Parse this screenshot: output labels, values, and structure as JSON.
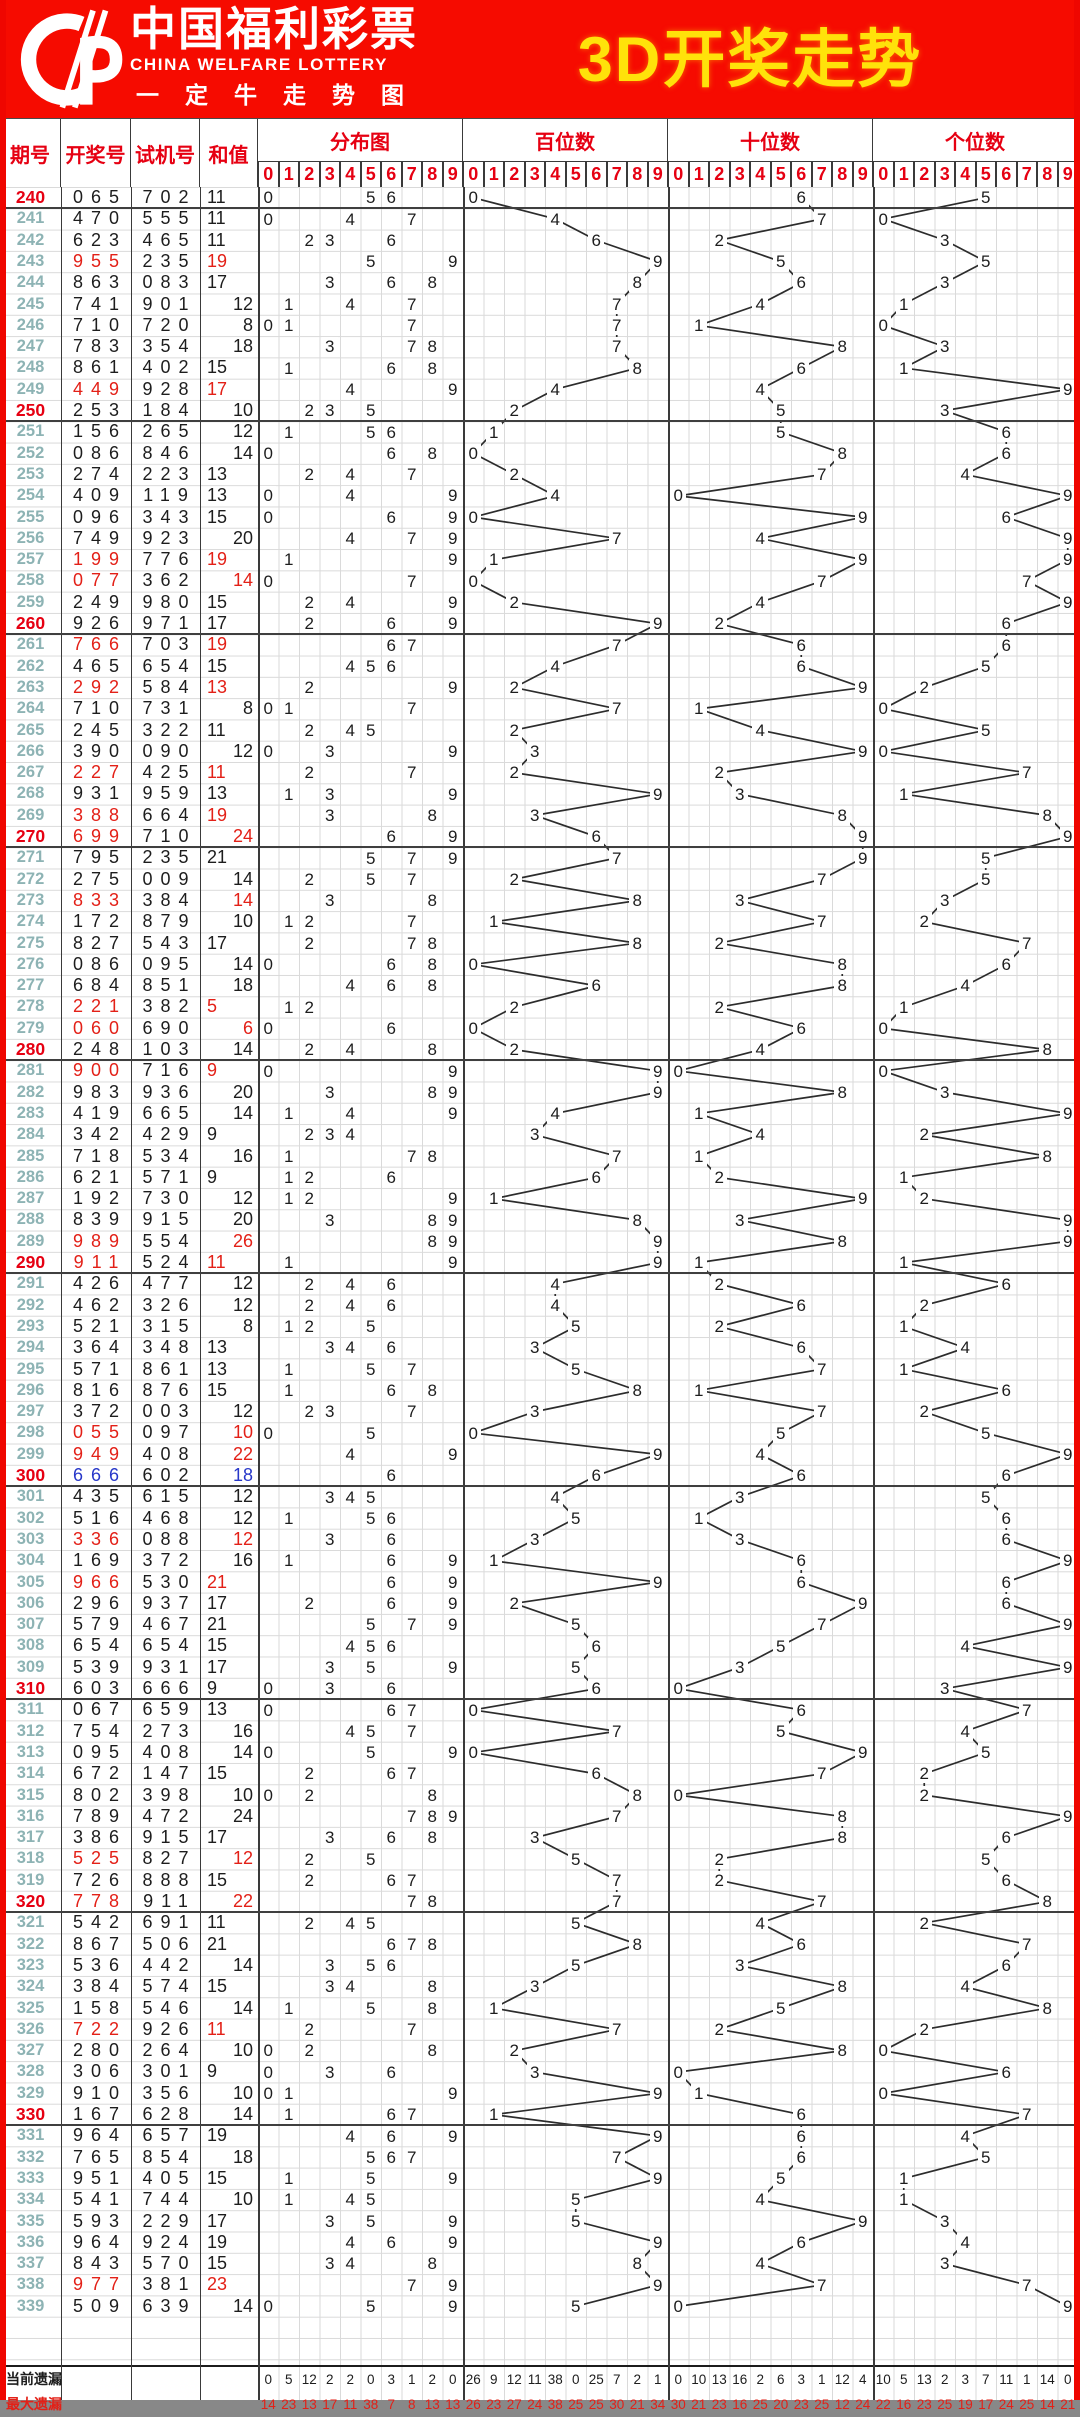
{
  "banner": {
    "brand_cn": "中国福利彩票",
    "brand_en": "CHINA WELFARE LOTTERY",
    "brand_sub": "一定牛走势图",
    "title": "3D开奖走势"
  },
  "headers": {
    "period": "期号",
    "draw": "开奖号",
    "test": "试机号",
    "sum": "和值",
    "sections": [
      "分布图",
      "百位数",
      "十位数",
      "个位数"
    ],
    "digits": [
      "0",
      "1",
      "2",
      "3",
      "4",
      "5",
      "6",
      "7",
      "8",
      "9"
    ]
  },
  "colors": {
    "banner_red": "#f60b00",
    "title_yellow": "#ffe20a",
    "header_red": "#e60012",
    "pair_red": "#e32017",
    "triple_blue": "#2737c9",
    "period_teal": "#8db3b4",
    "grid_light": "#dadada",
    "line_dark": "#2c2c2c"
  },
  "rows": [
    {
      "period": "240",
      "draw": "065",
      "test": "702",
      "sum": "11"
    },
    {
      "period": "241",
      "draw": "470",
      "test": "555",
      "sum": "11"
    },
    {
      "period": "242",
      "draw": "623",
      "test": "465",
      "sum": "11"
    },
    {
      "period": "243",
      "draw": "955",
      "test": "235",
      "sum": "19"
    },
    {
      "period": "244",
      "draw": "863",
      "test": "083",
      "sum": "17"
    },
    {
      "period": "245",
      "draw": "741",
      "test": "901",
      "sum": "12"
    },
    {
      "period": "246",
      "draw": "710",
      "test": "720",
      "sum": "8"
    },
    {
      "period": "247",
      "draw": "783",
      "test": "354",
      "sum": "18"
    },
    {
      "period": "248",
      "draw": "861",
      "test": "402",
      "sum": "15"
    },
    {
      "period": "249",
      "draw": "449",
      "test": "928",
      "sum": "17"
    },
    {
      "period": "250",
      "draw": "253",
      "test": "184",
      "sum": "10"
    },
    {
      "period": "251",
      "draw": "156",
      "test": "265",
      "sum": "12"
    },
    {
      "period": "252",
      "draw": "086",
      "test": "846",
      "sum": "14"
    },
    {
      "period": "253",
      "draw": "274",
      "test": "223",
      "sum": "13"
    },
    {
      "period": "254",
      "draw": "409",
      "test": "119",
      "sum": "13"
    },
    {
      "period": "255",
      "draw": "096",
      "test": "343",
      "sum": "15"
    },
    {
      "period": "256",
      "draw": "749",
      "test": "923",
      "sum": "20"
    },
    {
      "period": "257",
      "draw": "199",
      "test": "776",
      "sum": "19"
    },
    {
      "period": "258",
      "draw": "077",
      "test": "362",
      "sum": "14"
    },
    {
      "period": "259",
      "draw": "249",
      "test": "980",
      "sum": "15"
    },
    {
      "period": "260",
      "draw": "926",
      "test": "971",
      "sum": "17"
    },
    {
      "period": "261",
      "draw": "766",
      "test": "703",
      "sum": "19"
    },
    {
      "period": "262",
      "draw": "465",
      "test": "654",
      "sum": "15"
    },
    {
      "period": "263",
      "draw": "292",
      "test": "584",
      "sum": "13"
    },
    {
      "period": "264",
      "draw": "710",
      "test": "731",
      "sum": "8"
    },
    {
      "period": "265",
      "draw": "245",
      "test": "322",
      "sum": "11"
    },
    {
      "period": "266",
      "draw": "390",
      "test": "090",
      "sum": "12"
    },
    {
      "period": "267",
      "draw": "227",
      "test": "425",
      "sum": "11"
    },
    {
      "period": "268",
      "draw": "931",
      "test": "959",
      "sum": "13"
    },
    {
      "period": "269",
      "draw": "388",
      "test": "664",
      "sum": "19"
    },
    {
      "period": "270",
      "draw": "699",
      "test": "710",
      "sum": "24"
    },
    {
      "period": "271",
      "draw": "795",
      "test": "235",
      "sum": "21"
    },
    {
      "period": "272",
      "draw": "275",
      "test": "009",
      "sum": "14"
    },
    {
      "period": "273",
      "draw": "833",
      "test": "384",
      "sum": "14"
    },
    {
      "period": "274",
      "draw": "172",
      "test": "879",
      "sum": "10"
    },
    {
      "period": "275",
      "draw": "827",
      "test": "543",
      "sum": "17"
    },
    {
      "period": "276",
      "draw": "086",
      "test": "095",
      "sum": "14"
    },
    {
      "period": "277",
      "draw": "684",
      "test": "851",
      "sum": "18"
    },
    {
      "period": "278",
      "draw": "221",
      "test": "382",
      "sum": "5"
    },
    {
      "period": "279",
      "draw": "060",
      "test": "690",
      "sum": "6"
    },
    {
      "period": "280",
      "draw": "248",
      "test": "103",
      "sum": "14"
    },
    {
      "period": "281",
      "draw": "900",
      "test": "716",
      "sum": "9"
    },
    {
      "period": "282",
      "draw": "983",
      "test": "936",
      "sum": "20"
    },
    {
      "period": "283",
      "draw": "419",
      "test": "665",
      "sum": "14"
    },
    {
      "period": "284",
      "draw": "342",
      "test": "429",
      "sum": "9"
    },
    {
      "period": "285",
      "draw": "718",
      "test": "534",
      "sum": "16"
    },
    {
      "period": "286",
      "draw": "621",
      "test": "571",
      "sum": "9"
    },
    {
      "period": "287",
      "draw": "192",
      "test": "730",
      "sum": "12"
    },
    {
      "period": "288",
      "draw": "839",
      "test": "915",
      "sum": "20"
    },
    {
      "period": "289",
      "draw": "989",
      "test": "554",
      "sum": "26"
    },
    {
      "period": "290",
      "draw": "911",
      "test": "524",
      "sum": "11"
    },
    {
      "period": "291",
      "draw": "426",
      "test": "477",
      "sum": "12"
    },
    {
      "period": "292",
      "draw": "462",
      "test": "326",
      "sum": "12"
    },
    {
      "period": "293",
      "draw": "521",
      "test": "315",
      "sum": "8"
    },
    {
      "period": "294",
      "draw": "364",
      "test": "348",
      "sum": "13"
    },
    {
      "period": "295",
      "draw": "571",
      "test": "861",
      "sum": "13"
    },
    {
      "period": "296",
      "draw": "816",
      "test": "876",
      "sum": "15"
    },
    {
      "period": "297",
      "draw": "372",
      "test": "003",
      "sum": "12"
    },
    {
      "period": "298",
      "draw": "055",
      "test": "097",
      "sum": "10"
    },
    {
      "period": "299",
      "draw": "949",
      "test": "408",
      "sum": "22"
    },
    {
      "period": "300",
      "draw": "666",
      "test": "602",
      "sum": "18"
    },
    {
      "period": "301",
      "draw": "435",
      "test": "615",
      "sum": "12"
    },
    {
      "period": "302",
      "draw": "516",
      "test": "468",
      "sum": "12"
    },
    {
      "period": "303",
      "draw": "336",
      "test": "088",
      "sum": "12"
    },
    {
      "period": "304",
      "draw": "169",
      "test": "372",
      "sum": "16"
    },
    {
      "period": "305",
      "draw": "966",
      "test": "530",
      "sum": "21"
    },
    {
      "period": "306",
      "draw": "296",
      "test": "937",
      "sum": "17"
    },
    {
      "period": "307",
      "draw": "579",
      "test": "467",
      "sum": "21"
    },
    {
      "period": "308",
      "draw": "654",
      "test": "654",
      "sum": "15"
    },
    {
      "period": "309",
      "draw": "539",
      "test": "931",
      "sum": "17"
    },
    {
      "period": "310",
      "draw": "603",
      "test": "666",
      "sum": "9"
    },
    {
      "period": "311",
      "draw": "067",
      "test": "659",
      "sum": "13"
    },
    {
      "period": "312",
      "draw": "754",
      "test": "273",
      "sum": "16"
    },
    {
      "period": "313",
      "draw": "095",
      "test": "408",
      "sum": "14"
    },
    {
      "period": "314",
      "draw": "672",
      "test": "147",
      "sum": "15"
    },
    {
      "period": "315",
      "draw": "802",
      "test": "398",
      "sum": "10"
    },
    {
      "period": "316",
      "draw": "789",
      "test": "472",
      "sum": "24"
    },
    {
      "period": "317",
      "draw": "386",
      "test": "915",
      "sum": "17"
    },
    {
      "period": "318",
      "draw": "525",
      "test": "827",
      "sum": "12"
    },
    {
      "period": "319",
      "draw": "726",
      "test": "888",
      "sum": "15"
    },
    {
      "period": "320",
      "draw": "778",
      "test": "911",
      "sum": "22"
    },
    {
      "period": "321",
      "draw": "542",
      "test": "691",
      "sum": "11"
    },
    {
      "period": "322",
      "draw": "867",
      "test": "506",
      "sum": "21"
    },
    {
      "period": "323",
      "draw": "536",
      "test": "442",
      "sum": "14"
    },
    {
      "period": "324",
      "draw": "384",
      "test": "574",
      "sum": "15"
    },
    {
      "period": "325",
      "draw": "158",
      "test": "546",
      "sum": "14"
    },
    {
      "period": "326",
      "draw": "722",
      "test": "926",
      "sum": "11"
    },
    {
      "period": "327",
      "draw": "280",
      "test": "264",
      "sum": "10"
    },
    {
      "period": "328",
      "draw": "306",
      "test": "301",
      "sum": "9"
    },
    {
      "period": "329",
      "draw": "910",
      "test": "356",
      "sum": "10"
    },
    {
      "period": "330",
      "draw": "167",
      "test": "628",
      "sum": "14"
    },
    {
      "period": "331",
      "draw": "964",
      "test": "657",
      "sum": "19"
    },
    {
      "period": "332",
      "draw": "765",
      "test": "854",
      "sum": "18"
    },
    {
      "period": "333",
      "draw": "951",
      "test": "405",
      "sum": "15"
    },
    {
      "period": "334",
      "draw": "541",
      "test": "744",
      "sum": "10"
    },
    {
      "period": "335",
      "draw": "593",
      "test": "229",
      "sum": "17"
    },
    {
      "period": "336",
      "draw": "964",
      "test": "924",
      "sum": "19"
    },
    {
      "period": "337",
      "draw": "843",
      "test": "570",
      "sum": "15"
    },
    {
      "period": "338",
      "draw": "977",
      "test": "381",
      "sum": "23"
    },
    {
      "period": "339",
      "draw": "509",
      "test": "639",
      "sum": "14"
    }
  ],
  "footer": {
    "rows": [
      {
        "label": "当前遗漏",
        "partial": false,
        "values": [
          [
            0,
            5,
            12,
            2,
            2,
            0,
            3,
            1,
            2,
            0
          ],
          [
            26,
            9,
            12,
            11,
            38,
            0,
            25,
            7,
            2,
            1
          ],
          [
            0,
            10,
            13,
            16,
            2,
            6,
            3,
            1,
            12,
            4
          ],
          [
            10,
            5,
            13,
            2,
            3,
            7,
            11,
            1,
            14,
            0
          ]
        ]
      },
      {
        "label": "最大遗漏",
        "partial": true,
        "values": [
          [
            14,
            23,
            13,
            17,
            11,
            38,
            7,
            8,
            13,
            13
          ],
          [
            26,
            23,
            27,
            24,
            38,
            25,
            25,
            30,
            21,
            34
          ],
          [
            30,
            21,
            23,
            16,
            25,
            20,
            23,
            25,
            12,
            24
          ],
          [
            22,
            16,
            23,
            25,
            19,
            17,
            24,
            25,
            14,
            21
          ]
        ]
      }
    ]
  }
}
